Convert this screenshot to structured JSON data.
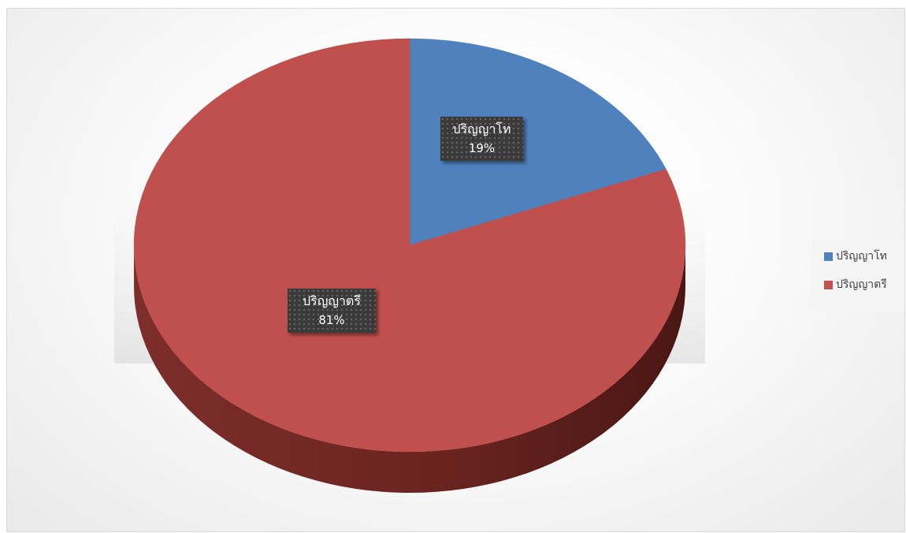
{
  "chart_data": {
    "type": "pie",
    "style": "3d",
    "categories": [
      "ปริญญาโท",
      "ปริญญาตรี"
    ],
    "values": [
      19,
      81
    ],
    "colors": [
      "#4f81bd",
      "#c0504d"
    ],
    "data_labels": [
      {
        "category": "ปริญญาโท",
        "percent": "19%"
      },
      {
        "category": "ปริญญาตรี",
        "percent": "81%"
      }
    ],
    "legend": {
      "position": "right",
      "items": [
        "ปริญญาโท",
        "ปริญญาตรี"
      ]
    }
  }
}
